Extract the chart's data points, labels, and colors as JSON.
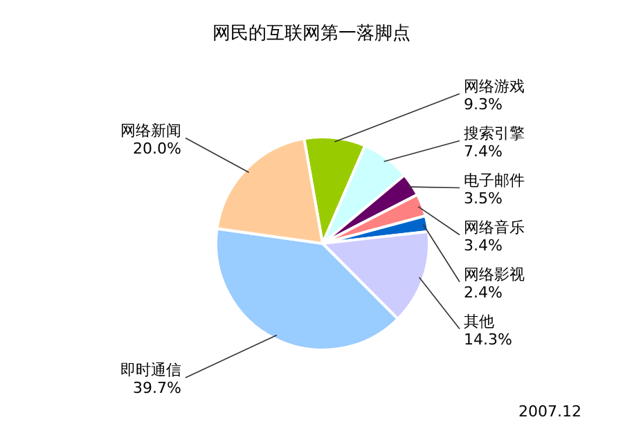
{
  "chart_data": {
    "type": "pie",
    "title": "网民的互联网第一落脚点",
    "categories": [
      "网络游戏",
      "搜索引擎",
      "电子邮件",
      "网络音乐",
      "网络影视",
      "其他",
      "即时通信",
      "网络新闻"
    ],
    "values": [
      9.3,
      7.4,
      3.5,
      3.4,
      2.4,
      14.3,
      39.7,
      20.0
    ],
    "value_labels": [
      "9.3%",
      "7.4%",
      "3.5%",
      "3.4%",
      "2.4%",
      "14.3%",
      "39.7%",
      "20.0%"
    ],
    "colors": [
      "#99cc00",
      "#ccffff",
      "#660066",
      "#ff8080",
      "#0066cc",
      "#ccccff",
      "#99ccff",
      "#ffcc99"
    ],
    "annotations": [
      "2007.12"
    ]
  }
}
